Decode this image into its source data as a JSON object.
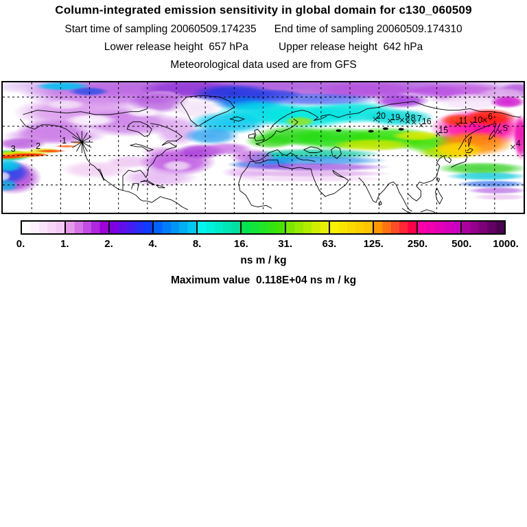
{
  "header": {
    "title": "Column-integrated emission sensitivity in global domain for c130_060509",
    "start_time": "Start time of sampling 20060509.174235",
    "end_time": "End time of sampling 20060509.174310",
    "lower_release": "Lower release height  657 hPa",
    "upper_release": "Upper release height  642 hPa",
    "met_source": "Meteorological data used are from GFS"
  },
  "chart_data": {
    "type": "heatmap",
    "title": "Column-integrated emission sensitivity in global domain for c130_060509",
    "units_label": "ns m / kg",
    "max_value_label": "Maximum value  0.118E+04 ns m / kg",
    "maximum_value_ns_m_per_kg": 1180,
    "map": {
      "projection": "equirectangular",
      "lon_range": [
        -180,
        180
      ],
      "lat_range": [
        1,
        90
      ],
      "grid_spacing_deg": 20,
      "grid_style": "dashed"
    },
    "colorbar": {
      "orientation": "horizontal",
      "tick_labels": [
        "0.",
        "1.",
        "2.",
        "4.",
        "8.",
        "16.",
        "31.",
        "63.",
        "125.",
        "250.",
        "500.",
        "1000."
      ],
      "levels": [
        0,
        1,
        2,
        4,
        8,
        16,
        31,
        63,
        125,
        250,
        500,
        1000
      ],
      "steps_per_segment": 5,
      "segments": [
        {
          "from": "#ffffff",
          "to": "#f4c8f4"
        },
        {
          "from": "#e79ae9",
          "to": "#9e00dc"
        },
        {
          "from": "#7d00e3",
          "to": "#0b3cff"
        },
        {
          "from": "#0064ff",
          "to": "#00c8f0"
        },
        {
          "from": "#00f5f0",
          "to": "#00e0a0"
        },
        {
          "from": "#00e550",
          "to": "#44e400"
        },
        {
          "from": "#7ce800",
          "to": "#e8f000"
        },
        {
          "from": "#f8f000",
          "to": "#ffc400"
        },
        {
          "from": "#ff9800",
          "to": "#ff0048"
        },
        {
          "from": "#fb00a8",
          "to": "#cc00c0"
        },
        {
          "from": "#ac009e",
          "to": "#4c0050"
        }
      ]
    },
    "release_marker": {
      "x": 0.152,
      "y": 0.458
    },
    "flight_track_labels": [
      {
        "label": "1",
        "x": 0.118,
        "y": 0.445
      },
      {
        "label": "2",
        "x": 0.068,
        "y": 0.487
      },
      {
        "label": "3",
        "x": 0.02,
        "y": 0.513
      },
      {
        "label": "4",
        "x": 0.99,
        "y": 0.47
      },
      {
        "label": "5",
        "x": 0.965,
        "y": 0.352
      },
      {
        "label": "6",
        "x": 0.936,
        "y": 0.262
      },
      {
        "label": "10",
        "x": 0.912,
        "y": 0.288
      },
      {
        "label": "11",
        "x": 0.884,
        "y": 0.296
      },
      {
        "label": "15",
        "x": 0.846,
        "y": 0.368
      },
      {
        "label": "16",
        "x": 0.814,
        "y": 0.302
      },
      {
        "label": "7",
        "x": 0.8,
        "y": 0.281
      },
      {
        "label": "8",
        "x": 0.788,
        "y": 0.274
      },
      {
        "label": "9",
        "x": 0.777,
        "y": 0.263
      },
      {
        "label": "19",
        "x": 0.754,
        "y": 0.268
      },
      {
        "label": "20",
        "x": 0.726,
        "y": 0.256
      }
    ],
    "field_blobs": [
      [
        0.5,
        0.03,
        0.55,
        0.11,
        "#9f3fd8",
        0.8
      ],
      [
        0.2,
        0.09,
        0.17,
        0.1,
        "#c06ae4",
        0.85
      ],
      [
        0.36,
        0.05,
        0.1,
        0.07,
        "#8f35d8",
        0.85
      ],
      [
        0.7,
        0.06,
        0.11,
        0.07,
        "#b652e0",
        0.85
      ],
      [
        0.88,
        0.08,
        0.11,
        0.08,
        "#c45fe2",
        0.9
      ],
      [
        0.99,
        0.06,
        0.04,
        0.06,
        "#b050dc",
        0.85
      ],
      [
        0.115,
        0.03,
        0.055,
        0.035,
        "#00c2f0",
        0.95
      ],
      [
        0.165,
        0.07,
        0.04,
        0.035,
        "#2a50e8",
        0.9
      ],
      [
        0.445,
        0.09,
        0.085,
        0.08,
        "#2136e0",
        0.95
      ],
      [
        0.47,
        0.16,
        0.07,
        0.06,
        "#0072f0",
        0.9
      ],
      [
        0.52,
        0.1,
        0.06,
        0.05,
        "#2b42e6",
        0.85
      ],
      [
        0.59,
        0.13,
        0.05,
        0.04,
        "#f2dcf6",
        0.85
      ],
      [
        0.8,
        0.11,
        0.05,
        0.04,
        "#ffffff",
        0.8
      ],
      [
        0.305,
        0.1,
        0.04,
        0.04,
        "#e8c8f0",
        0.8
      ],
      [
        0.15,
        0.23,
        0.13,
        0.13,
        "#d892ec",
        0.9
      ],
      [
        0.24,
        0.31,
        0.1,
        0.11,
        "#cc7fe8",
        0.9
      ],
      [
        0.095,
        0.37,
        0.07,
        0.09,
        "#c26ae2",
        0.85
      ],
      [
        0.3,
        0.15,
        0.06,
        0.09,
        "#b050dc",
        0.8
      ],
      [
        0.335,
        0.37,
        0.045,
        0.12,
        "#dca4ee",
        0.85
      ],
      [
        0.37,
        0.2,
        0.05,
        0.08,
        "#f4e4f8",
        0.9
      ],
      [
        0.17,
        0.29,
        0.05,
        0.05,
        "#ffffff",
        0.9
      ],
      [
        0.12,
        0.17,
        0.04,
        0.04,
        "#f6e8f8",
        0.85
      ],
      [
        0.27,
        0.23,
        0.035,
        0.04,
        "#ffffff",
        0.8
      ],
      [
        0.205,
        0.56,
        0.14,
        0.1,
        "#ffffff",
        0.92
      ],
      [
        0.435,
        0.31,
        0.08,
        0.09,
        "#00c4ee",
        0.9
      ],
      [
        0.4,
        0.41,
        0.055,
        0.07,
        "#28a0f0",
        0.85
      ],
      [
        0.5,
        0.23,
        0.09,
        0.1,
        "#00d8e8",
        0.95
      ],
      [
        0.58,
        0.26,
        0.1,
        0.1,
        "#00e8e0",
        0.95
      ],
      [
        0.67,
        0.23,
        0.1,
        0.09,
        "#00e4e0",
        0.95
      ],
      [
        0.76,
        0.27,
        0.07,
        0.07,
        "#00d8d8",
        0.9
      ],
      [
        0.6,
        0.13,
        0.13,
        0.05,
        "#3a5cf0",
        0.75
      ],
      [
        0.765,
        0.14,
        0.055,
        0.06,
        "#a63ee0",
        0.95
      ],
      [
        0.83,
        0.07,
        0.06,
        0.05,
        "#b954e4",
        0.85
      ],
      [
        0.9,
        0.15,
        0.07,
        0.07,
        "#f6e6fa",
        0.95
      ],
      [
        0.96,
        0.09,
        0.05,
        0.05,
        "#e2b4ee",
        0.9
      ],
      [
        0.57,
        0.3,
        0.03,
        0.04,
        "#a8e400",
        0.8
      ],
      [
        0.515,
        0.45,
        0.05,
        0.06,
        "#38d818",
        0.85
      ],
      [
        0.56,
        0.41,
        0.08,
        0.08,
        "#2ad816",
        0.9
      ],
      [
        0.64,
        0.43,
        0.1,
        0.09,
        "#22dd10",
        0.95
      ],
      [
        0.74,
        0.43,
        0.1,
        0.09,
        "#30e008",
        0.95
      ],
      [
        0.83,
        0.47,
        0.07,
        0.08,
        "#40e000",
        0.9
      ],
      [
        0.71,
        0.48,
        0.08,
        0.05,
        "#cce800",
        0.9
      ],
      [
        0.795,
        0.41,
        0.05,
        0.04,
        "#e6ea00",
        0.85
      ],
      [
        0.86,
        0.53,
        0.05,
        0.05,
        "#d8ec00",
        0.85
      ],
      [
        0.52,
        0.58,
        0.06,
        0.05,
        "#00c0e0",
        0.8
      ],
      [
        0.5,
        0.63,
        0.07,
        0.04,
        "#2a64e8",
        0.75
      ],
      [
        0.6,
        0.55,
        0.13,
        0.045,
        "#00c89c",
        0.8
      ],
      [
        0.6,
        0.6,
        0.14,
        0.04,
        "#1e8ce8",
        0.75
      ],
      [
        0.595,
        0.65,
        0.15,
        0.035,
        "#9646dc",
        0.75
      ],
      [
        0.59,
        0.7,
        0.16,
        0.03,
        "#d898e8",
        0.7
      ],
      [
        0.585,
        0.74,
        0.16,
        0.025,
        "#f0ccf4",
        0.65
      ],
      [
        0.92,
        0.66,
        0.09,
        0.05,
        "#30d020",
        0.85
      ],
      [
        0.93,
        0.72,
        0.08,
        0.035,
        "#00c8d8",
        0.8
      ],
      [
        0.94,
        0.78,
        0.07,
        0.03,
        "#2e6ce8",
        0.75
      ],
      [
        0.95,
        0.83,
        0.06,
        0.028,
        "#b05ae0",
        0.7
      ],
      [
        0.955,
        0.88,
        0.055,
        0.025,
        "#e8b4ec",
        0.65
      ],
      [
        0.845,
        0.54,
        0.05,
        0.05,
        "#a0e000",
        0.85
      ],
      [
        0.915,
        0.35,
        0.095,
        0.15,
        "#ff00a0",
        0.95
      ],
      [
        0.905,
        0.47,
        0.078,
        0.1,
        "#ff8c00",
        0.95
      ],
      [
        0.935,
        0.27,
        0.05,
        0.07,
        "#ff2000",
        0.9
      ],
      [
        0.875,
        0.29,
        0.035,
        0.05,
        "#ff3800",
        0.85
      ],
      [
        0.875,
        0.52,
        0.05,
        0.07,
        "#ffd800",
        0.9
      ],
      [
        0.97,
        0.15,
        0.035,
        0.05,
        "#cc00cc",
        0.85
      ],
      [
        0.995,
        0.42,
        0.015,
        0.18,
        "#f000b0",
        0.9
      ],
      [
        0.18,
        0.67,
        0.07,
        0.07,
        "#f2ccf2",
        0.85
      ],
      [
        0.245,
        0.61,
        0.05,
        0.05,
        "#ecbff0",
        0.8
      ],
      [
        0.305,
        0.53,
        0.04,
        0.04,
        "#e4b0ec",
        0.8
      ],
      [
        0.335,
        0.61,
        0.075,
        0.11,
        "#bb50e0",
        0.92
      ],
      [
        0.38,
        0.53,
        0.05,
        0.06,
        "#a838d8",
        0.9
      ],
      [
        0.335,
        0.64,
        0.03,
        0.045,
        "#f2dcf6",
        0.9
      ],
      [
        0.3,
        0.73,
        0.075,
        0.075,
        "#e0aaf0",
        0.75
      ],
      [
        0.43,
        0.51,
        0.05,
        0.05,
        "#c468e4",
        0.8
      ],
      [
        0.48,
        0.57,
        0.045,
        0.06,
        "#c462e2",
        0.8
      ],
      [
        0.47,
        0.69,
        0.05,
        0.05,
        "#e2acf0",
        0.7
      ],
      [
        0.1,
        0.41,
        0.1,
        0.07,
        "#cf84e8",
        0.9
      ],
      [
        0.035,
        0.47,
        0.05,
        0.05,
        "#b858dc",
        0.85
      ],
      [
        0.005,
        0.565,
        0.05,
        0.05,
        "#00c8e0",
        0.9
      ],
      [
        0.012,
        0.558,
        0.045,
        0.04,
        "#28d820",
        0.92
      ],
      [
        0.03,
        0.552,
        0.055,
        0.03,
        "#e8e800",
        0.95
      ],
      [
        0.08,
        0.525,
        0.035,
        0.022,
        "#d8e400",
        0.8
      ],
      [
        0.005,
        0.568,
        0.05,
        0.022,
        "#ff9800",
        0.95
      ],
      [
        0.048,
        0.556,
        0.045,
        0.018,
        "#ff9800",
        0.9
      ],
      [
        0.002,
        0.572,
        0.04,
        0.013,
        "#ff2000",
        0.95
      ],
      [
        0.05,
        0.557,
        0.04,
        0.012,
        "#ff2000",
        0.95
      ],
      [
        0.092,
        0.527,
        0.03,
        0.011,
        "#ff3000",
        0.9
      ],
      [
        0.122,
        0.49,
        0.022,
        0.01,
        "#ff5000",
        0.85
      ],
      [
        0.145,
        0.463,
        0.012,
        0.008,
        "#ff8800",
        0.8
      ],
      [
        0.02,
        0.73,
        0.055,
        0.13,
        "#a838d4",
        0.9
      ],
      [
        0.013,
        0.69,
        0.04,
        0.09,
        "#2846e8",
        0.9
      ],
      [
        0.009,
        0.64,
        0.03,
        0.05,
        "#00d0e8",
        0.9
      ],
      [
        0.006,
        0.79,
        0.025,
        0.05,
        "#00b4e0",
        0.85
      ],
      [
        0.001,
        0.72,
        0.015,
        0.04,
        "#e8f0f8",
        0.85
      ]
    ]
  }
}
